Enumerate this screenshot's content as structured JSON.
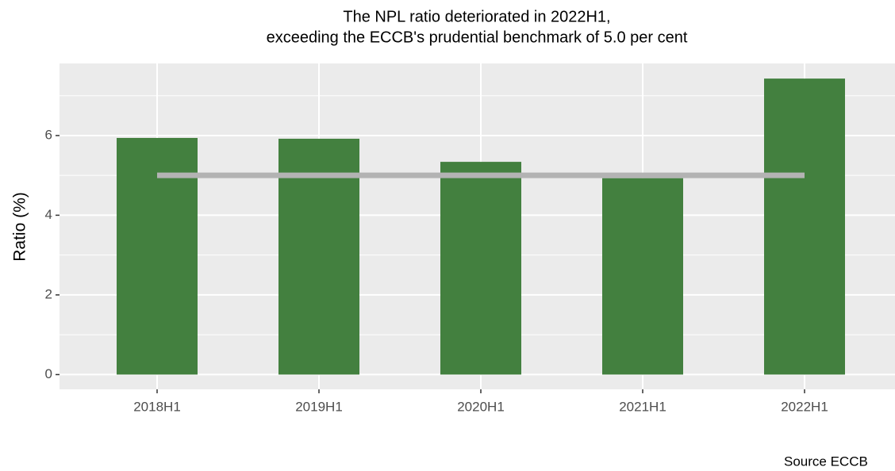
{
  "chart_data": {
    "type": "bar",
    "title": [
      "The NPL ratio deteriorated in 2022H1,",
      "exceeding the ECCB's prudential benchmark of 5.0 per cent"
    ],
    "y_label": "Ratio (%)",
    "caption": "Source ECCB",
    "categories": [
      "2018H1",
      "2019H1",
      "2020H1",
      "2021H1",
      "2022H1"
    ],
    "values": [
      5.94,
      5.92,
      5.34,
      4.93,
      7.43
    ],
    "color": "#43803f",
    "benchmark": {
      "value": 5.0,
      "color": "#b3b3b3"
    },
    "ylim": [
      -0.37,
      7.81
    ],
    "yticks": [
      0,
      2,
      4,
      6
    ],
    "minor_yticks": [
      1,
      3,
      5,
      7
    ],
    "grid": true
  }
}
